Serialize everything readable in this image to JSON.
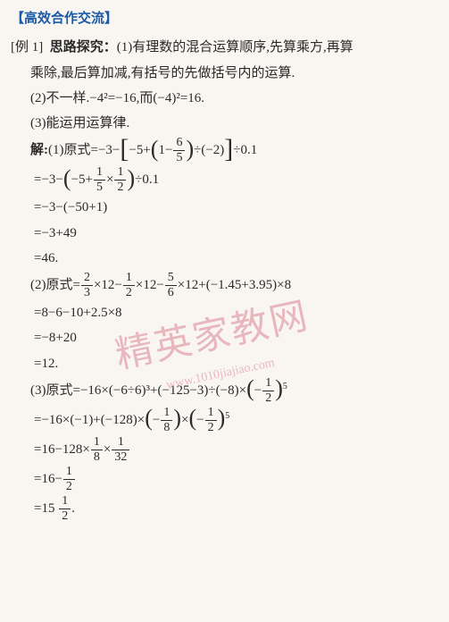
{
  "header": "【高效合作交流】",
  "example_label": "[例 1]",
  "silu_label": "思路探究：",
  "silu_1_a": "(1)有理数的混合运算顺序,先算乘方,再算",
  "silu_1_b": "乘除,最后算加减,有括号的先做括号内的运算.",
  "silu_2": "(2)不一样.−4²=−16,而(−4)²=16.",
  "silu_3": "(3)能运用运算律.",
  "jie_label": "解:",
  "p1": {
    "l1_a": "(1)原式=−3−",
    "l1_b": "−5+",
    "l1_c": "1−",
    "l1_d": "÷(−2)",
    "l1_e": "÷0.1",
    "f6_5_n": "6",
    "f6_5_d": "5",
    "l2_a": "=−3−",
    "l2_b": "−5+",
    "l2_c": "×",
    "l2_d": "÷0.1",
    "f1_5_n": "1",
    "f1_5_d": "5",
    "f1_2_n": "1",
    "f1_2_d": "2",
    "l3": "=−3−(−50+1)",
    "l4": "=−3+49",
    "l5": "=46."
  },
  "p2": {
    "l1_a": "(2)原式=",
    "l1_b": "×12−",
    "l1_c": "×12−",
    "l1_d": "×12+(−1.45+3.95)×8",
    "f2_3_n": "2",
    "f2_3_d": "3",
    "f1_2_n": "1",
    "f1_2_d": "2",
    "f5_6_n": "5",
    "f5_6_d": "6",
    "l2": "=8−6−10+2.5×8",
    "l3": "=−8+20",
    "l4": "=12."
  },
  "p3": {
    "l1_a": "(3)原式=−16×(−6÷6)³+(−125−3)÷(−8)×",
    "l1_b": "−",
    "f1_2_n": "1",
    "f1_2_d": "2",
    "exp5": "5",
    "l2_a": "=−16×(−1)+(−128)×",
    "l2_b": "−",
    "l2_c": "×",
    "l2_d": "−",
    "f1_8_n": "1",
    "f1_8_d": "8",
    "l3_a": "=16−128×",
    "l3_b": "×",
    "f1_32_n": "1",
    "f1_32_d": "32",
    "l4_a": "=16−",
    "l5_a": "=15",
    "l5_b": "."
  },
  "watermark_main": "精英家教网",
  "watermark_sub": "www.1010jiajiao.com"
}
